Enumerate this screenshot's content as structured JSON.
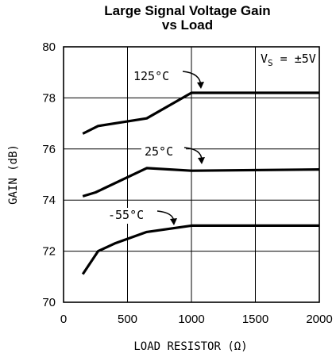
{
  "chart_data": {
    "type": "line",
    "title": "Large Signal Voltage Gain",
    "subtitle": "vs Load",
    "xlabel": "LOAD RESISTOR (Ω)",
    "ylabel": "GAIN (dB)",
    "xlim": [
      0,
      2000
    ],
    "ylim": [
      70,
      80
    ],
    "xticks": [
      0,
      500,
      1000,
      1500,
      2000
    ],
    "yticks": [
      70,
      72,
      74,
      76,
      78,
      80
    ],
    "grid": true,
    "condition_label": "V_S = ±5V",
    "series": [
      {
        "name": "125°C",
        "x": [
          150,
          270,
          650,
          1000,
          2000
        ],
        "y": [
          76.6,
          76.9,
          77.2,
          78.2,
          78.2
        ]
      },
      {
        "name": "25°C",
        "x": [
          150,
          250,
          650,
          1000,
          2000
        ],
        "y": [
          74.15,
          74.3,
          75.25,
          75.15,
          75.2
        ]
      },
      {
        "name": "-55°C",
        "x": [
          150,
          270,
          400,
          650,
          1000,
          2000
        ],
        "y": [
          71.1,
          72.0,
          72.3,
          72.75,
          73.0,
          73.0
        ]
      }
    ],
    "annotations": [
      {
        "text": "125°C",
        "series": "125°C"
      },
      {
        "text": "25°C",
        "series": "25°C"
      },
      {
        "text": "-55°C",
        "series": "-55°C"
      }
    ]
  }
}
